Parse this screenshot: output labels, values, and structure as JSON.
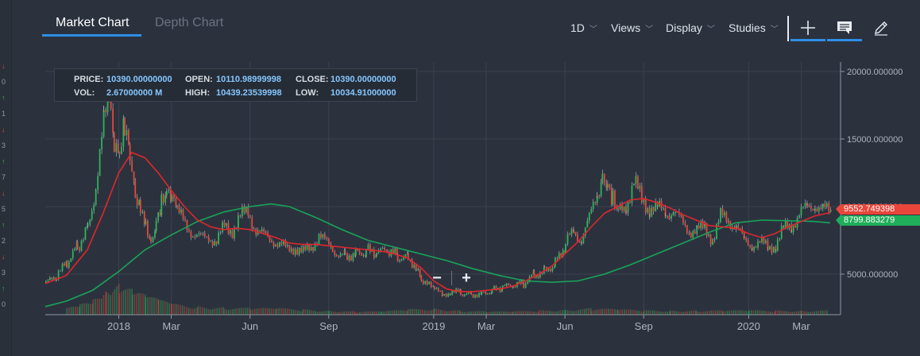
{
  "tabs": [
    {
      "label": "Market Chart",
      "active": true
    },
    {
      "label": "Depth Chart",
      "active": false
    }
  ],
  "menus": [
    {
      "label": "1D",
      "icon": "chevron-down-icon"
    },
    {
      "label": "Views",
      "icon": "chevron-down-icon"
    },
    {
      "label": "Display",
      "icon": "chevron-down-icon"
    },
    {
      "label": "Studies",
      "icon": "chevron-down-icon"
    }
  ],
  "tools": [
    {
      "icon": "crosshair-plus-icon"
    },
    {
      "icon": "comment-icon"
    },
    {
      "icon": "pencil-icon"
    }
  ],
  "info": {
    "price_label": "PRICE:",
    "price": "10390.00000000",
    "open_label": "OPEN:",
    "open": "10110.98999998",
    "close_label": "CLOSE:",
    "close": "10390.00000000",
    "vol_label": "VOL:",
    "vol": "2.67000000 M",
    "high_label": "HIGH:",
    "high": "10439.23539998",
    "low_label": "LOW:",
    "low": "10034.91000000"
  },
  "zoom": {
    "minus": "−",
    "plus": "+"
  },
  "price_tags": [
    {
      "value": "9552.749398",
      "color": "#e8463a"
    },
    {
      "value": "8799.883279",
      "color": "#1fae5a"
    }
  ],
  "left_strip": [
    "0",
    "1",
    "3",
    "7",
    "5",
    "2",
    "3",
    "0"
  ],
  "colors": {
    "bull": "#2fb35a",
    "bear": "#e24a3a",
    "ma_short": "#e0262c",
    "ma_long": "#1aa35a",
    "accent": "#2f8ee6",
    "bg": "#2b323e"
  },
  "chart_data": {
    "type": "line",
    "y_ticks": [
      "20000.000000",
      "15000.000000",
      "10000.000000",
      "5000.000000"
    ],
    "y_tick_values": [
      20000,
      15000,
      10000,
      5000
    ],
    "ylim": [
      2000,
      20700
    ],
    "x_ticks": [
      "2018",
      "Mar",
      "Jun",
      "Sep",
      "2019",
      "Mar",
      "Jun",
      "Sep",
      "2020",
      "Mar"
    ],
    "x_tick_months": [
      0,
      2,
      5,
      8,
      12,
      14,
      17,
      20,
      24,
      26
    ],
    "x_range_months": [
      -2.8,
      27.5
    ],
    "price": [
      [
        -2.8,
        4300
      ],
      [
        -2.4,
        4800
      ],
      [
        -2,
        5800
      ],
      [
        -1.6,
        7000
      ],
      [
        -1.2,
        8600
      ],
      [
        -0.9,
        11500
      ],
      [
        -0.6,
        16000
      ],
      [
        -0.4,
        17800
      ],
      [
        -0.2,
        14000
      ],
      [
        0,
        13500
      ],
      [
        0.2,
        16000
      ],
      [
        0.4,
        14000
      ],
      [
        0.6,
        11000
      ],
      [
        0.8,
        10300
      ],
      [
        1,
        9000
      ],
      [
        1.2,
        7400
      ],
      [
        1.4,
        9000
      ],
      [
        1.6,
        10200
      ],
      [
        1.8,
        10800
      ],
      [
        2,
        10400
      ],
      [
        2.2,
        9500
      ],
      [
        2.5,
        8800
      ],
      [
        2.8,
        8000
      ],
      [
        3.1,
        7600
      ],
      [
        3.4,
        7800
      ],
      [
        3.7,
        7400
      ],
      [
        4,
        8500
      ],
      [
        4.3,
        8300
      ],
      [
        4.6,
        9200
      ],
      [
        4.9,
        9600
      ],
      [
        5.2,
        8300
      ],
      [
        5.5,
        7800
      ],
      [
        5.8,
        7600
      ],
      [
        6.1,
        7200
      ],
      [
        6.4,
        6800
      ],
      [
        6.7,
        7000
      ],
      [
        7,
        6600
      ],
      [
        7.3,
        6900
      ],
      [
        7.6,
        8000
      ],
      [
        7.9,
        7200
      ],
      [
        8.2,
        6700
      ],
      [
        8.6,
        6400
      ],
      [
        9,
        6600
      ],
      [
        9.4,
        6700
      ],
      [
        9.8,
        6500
      ],
      [
        10.2,
        6700
      ],
      [
        10.6,
        6300
      ],
      [
        11,
        6300
      ],
      [
        11.3,
        5600
      ],
      [
        11.5,
        4600
      ],
      [
        11.8,
        4100
      ],
      [
        12,
        3800
      ],
      [
        12.3,
        3500
      ],
      [
        12.6,
        3700
      ],
      [
        13,
        3600
      ],
      [
        13.4,
        3500
      ],
      [
        13.8,
        3600
      ],
      [
        14.2,
        3800
      ],
      [
        14.6,
        4000
      ],
      [
        15,
        4100
      ],
      [
        15.4,
        4300
      ],
      [
        15.8,
        5000
      ],
      [
        16.2,
        5300
      ],
      [
        16.6,
        5800
      ],
      [
        17,
        7200
      ],
      [
        17.3,
        8200
      ],
      [
        17.6,
        7600
      ],
      [
        17.9,
        9000
      ],
      [
        18.2,
        11000
      ],
      [
        18.4,
        12500
      ],
      [
        18.6,
        11800
      ],
      [
        18.8,
        10500
      ],
      [
        19,
        9500
      ],
      [
        19.3,
        10200
      ],
      [
        19.6,
        11800
      ],
      [
        19.9,
        10400
      ],
      [
        20.2,
        10000
      ],
      [
        20.5,
        9800
      ],
      [
        20.8,
        9600
      ],
      [
        21.1,
        9700
      ],
      [
        21.4,
        8800
      ],
      [
        21.7,
        8300
      ],
      [
        22,
        8200
      ],
      [
        22.3,
        8400
      ],
      [
        22.6,
        7600
      ],
      [
        22.9,
        9200
      ],
      [
        23.2,
        9000
      ],
      [
        23.5,
        8600
      ],
      [
        23.8,
        7400
      ],
      [
        24.1,
        7200
      ],
      [
        24.4,
        7300
      ],
      [
        24.7,
        7000
      ],
      [
        25,
        7200
      ],
      [
        25.3,
        8300
      ],
      [
        25.6,
        8600
      ],
      [
        25.9,
        9500
      ],
      [
        26.2,
        9800
      ],
      [
        26.5,
        10300
      ],
      [
        26.8,
        9700
      ],
      [
        27.1,
        9550
      ]
    ],
    "ma_short": [
      [
        -2.8,
        4300
      ],
      [
        -2,
        4900
      ],
      [
        -1.2,
        6800
      ],
      [
        -0.6,
        9500
      ],
      [
        0,
        12500
      ],
      [
        0.5,
        14000
      ],
      [
        1,
        13600
      ],
      [
        1.5,
        12500
      ],
      [
        2,
        11200
      ],
      [
        2.5,
        10000
      ],
      [
        3,
        9000
      ],
      [
        3.5,
        8500
      ],
      [
        4,
        8300
      ],
      [
        4.5,
        8400
      ],
      [
        5,
        8300
      ],
      [
        5.5,
        8000
      ],
      [
        6,
        7700
      ],
      [
        6.5,
        7300
      ],
      [
        7,
        7200
      ],
      [
        7.5,
        7200
      ],
      [
        8,
        7100
      ],
      [
        8.5,
        7000
      ],
      [
        9,
        6900
      ],
      [
        9.5,
        6800
      ],
      [
        10,
        6700
      ],
      [
        10.5,
        6500
      ],
      [
        11,
        6200
      ],
      [
        11.5,
        5500
      ],
      [
        12,
        4500
      ],
      [
        12.5,
        3900
      ],
      [
        13,
        3700
      ],
      [
        13.5,
        3700
      ],
      [
        14,
        3800
      ],
      [
        14.5,
        3900
      ],
      [
        15,
        4100
      ],
      [
        15.5,
        4500
      ],
      [
        16,
        5000
      ],
      [
        16.5,
        5600
      ],
      [
        17,
        6500
      ],
      [
        17.5,
        7400
      ],
      [
        18,
        8500
      ],
      [
        18.5,
        9500
      ],
      [
        19,
        10000
      ],
      [
        19.5,
        10500
      ],
      [
        20,
        10600
      ],
      [
        20.5,
        10300
      ],
      [
        21,
        9900
      ],
      [
        21.5,
        9400
      ],
      [
        22,
        9000
      ],
      [
        22.5,
        8600
      ],
      [
        23,
        8500
      ],
      [
        23.5,
        8400
      ],
      [
        24,
        8000
      ],
      [
        24.5,
        7700
      ],
      [
        25,
        8000
      ],
      [
        25.5,
        8500
      ],
      [
        26,
        8900
      ],
      [
        26.5,
        9300
      ],
      [
        27.1,
        9550
      ]
    ],
    "ma_long": [
      [
        -2.8,
        2600
      ],
      [
        -2,
        3000
      ],
      [
        -1,
        3800
      ],
      [
        0,
        5200
      ],
      [
        1,
        6800
      ],
      [
        2,
        7900
      ],
      [
        3,
        8900
      ],
      [
        4,
        9600
      ],
      [
        5,
        10000
      ],
      [
        5.8,
        10200
      ],
      [
        6.5,
        10000
      ],
      [
        7.5,
        9200
      ],
      [
        8.5,
        8300
      ],
      [
        9.5,
        7500
      ],
      [
        10.5,
        7000
      ],
      [
        11.5,
        6500
      ],
      [
        12.5,
        6000
      ],
      [
        13.5,
        5400
      ],
      [
        14.5,
        4900
      ],
      [
        15.5,
        4500
      ],
      [
        16.5,
        4400
      ],
      [
        17.5,
        4500
      ],
      [
        18.5,
        5000
      ],
      [
        19.5,
        5700
      ],
      [
        20.5,
        6500
      ],
      [
        21.5,
        7300
      ],
      [
        22.5,
        8100
      ],
      [
        23.5,
        8800
      ],
      [
        24.5,
        9000
      ],
      [
        25.5,
        8950
      ],
      [
        26.5,
        8900
      ],
      [
        27.1,
        8800
      ]
    ],
    "volume": [
      [
        -2,
        0.3
      ],
      [
        -1.5,
        0.5
      ],
      [
        -1,
        0.8
      ],
      [
        -0.5,
        1.4
      ],
      [
        0,
        1.6
      ],
      [
        0.5,
        1.2
      ],
      [
        1,
        0.9
      ],
      [
        1.5,
        0.7
      ],
      [
        2,
        0.5
      ],
      [
        3,
        0.4
      ],
      [
        4,
        0.35
      ],
      [
        5,
        0.3
      ],
      [
        6,
        0.3
      ],
      [
        7,
        0.25
      ],
      [
        8,
        0.2
      ],
      [
        9,
        0.15
      ],
      [
        10,
        0.15
      ],
      [
        11,
        0.25
      ],
      [
        12,
        0.3
      ],
      [
        13,
        0.2
      ],
      [
        14,
        0.15
      ],
      [
        15,
        0.15
      ],
      [
        16,
        0.2
      ],
      [
        17,
        0.25
      ],
      [
        18,
        0.3
      ],
      [
        19,
        0.25
      ],
      [
        20,
        0.2
      ],
      [
        21,
        0.2
      ],
      [
        22,
        0.2
      ],
      [
        23,
        0.2
      ],
      [
        24,
        0.2
      ],
      [
        25,
        0.2
      ],
      [
        26,
        0.2
      ],
      [
        27,
        0.2
      ]
    ]
  }
}
